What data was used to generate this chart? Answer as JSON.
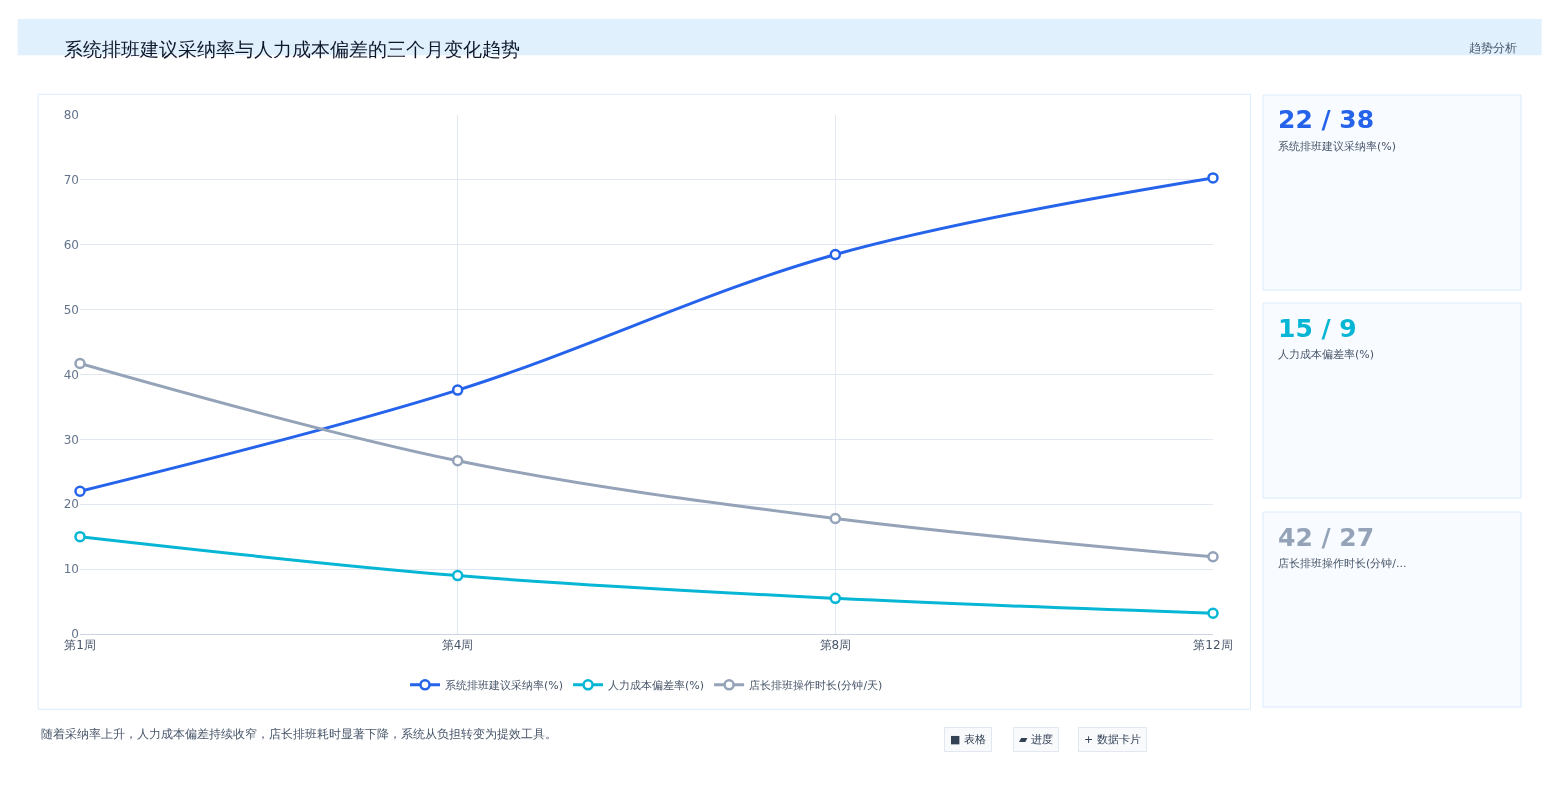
{
  "chart_data": {
    "type": "line",
    "title": "系统排班建议采纳率与人力成本偏差的三个月变化趋势",
    "categories": [
      "第1周",
      "第4周",
      "第8周",
      "第12周"
    ],
    "series": [
      {
        "name": "系统排班建议采纳率(%)",
        "color": "#2563eb",
        "values": [
          22,
          37.6,
          58.5,
          70.3
        ]
      },
      {
        "name": "人力成本偏差率(%)",
        "color": "#06b6d4",
        "values": [
          15,
          9,
          5.5,
          3.2
        ]
      },
      {
        "name": "店长排班操作时长(分钟/天)",
        "color": "#94a3b8",
        "values": [
          41.7,
          26.7,
          17.8,
          11.9
        ]
      }
    ],
    "ylim": [
      0,
      80
    ],
    "yticks": [
      0,
      10,
      20,
      30,
      40,
      50,
      60,
      70,
      80
    ],
    "grid": true,
    "legend": "bottom",
    "marker": "circle",
    "line_style": "solid",
    "annotations": [
      "22 / 38",
      "系统排班建议采纳率(%)",
      "15 / 9",
      "人力成本偏差率(%)",
      "42 / 27",
      "店长排班操作时长(分钟/...",
      "趋势分析",
      "随着采纳率上升，人力成本偏差持续收窄，店长排班耗时显著下降，系统从负担转变为提效工具。",
      "■ 表格",
      "▰ 进度",
      "+ 数据卡片"
    ]
  }
}
